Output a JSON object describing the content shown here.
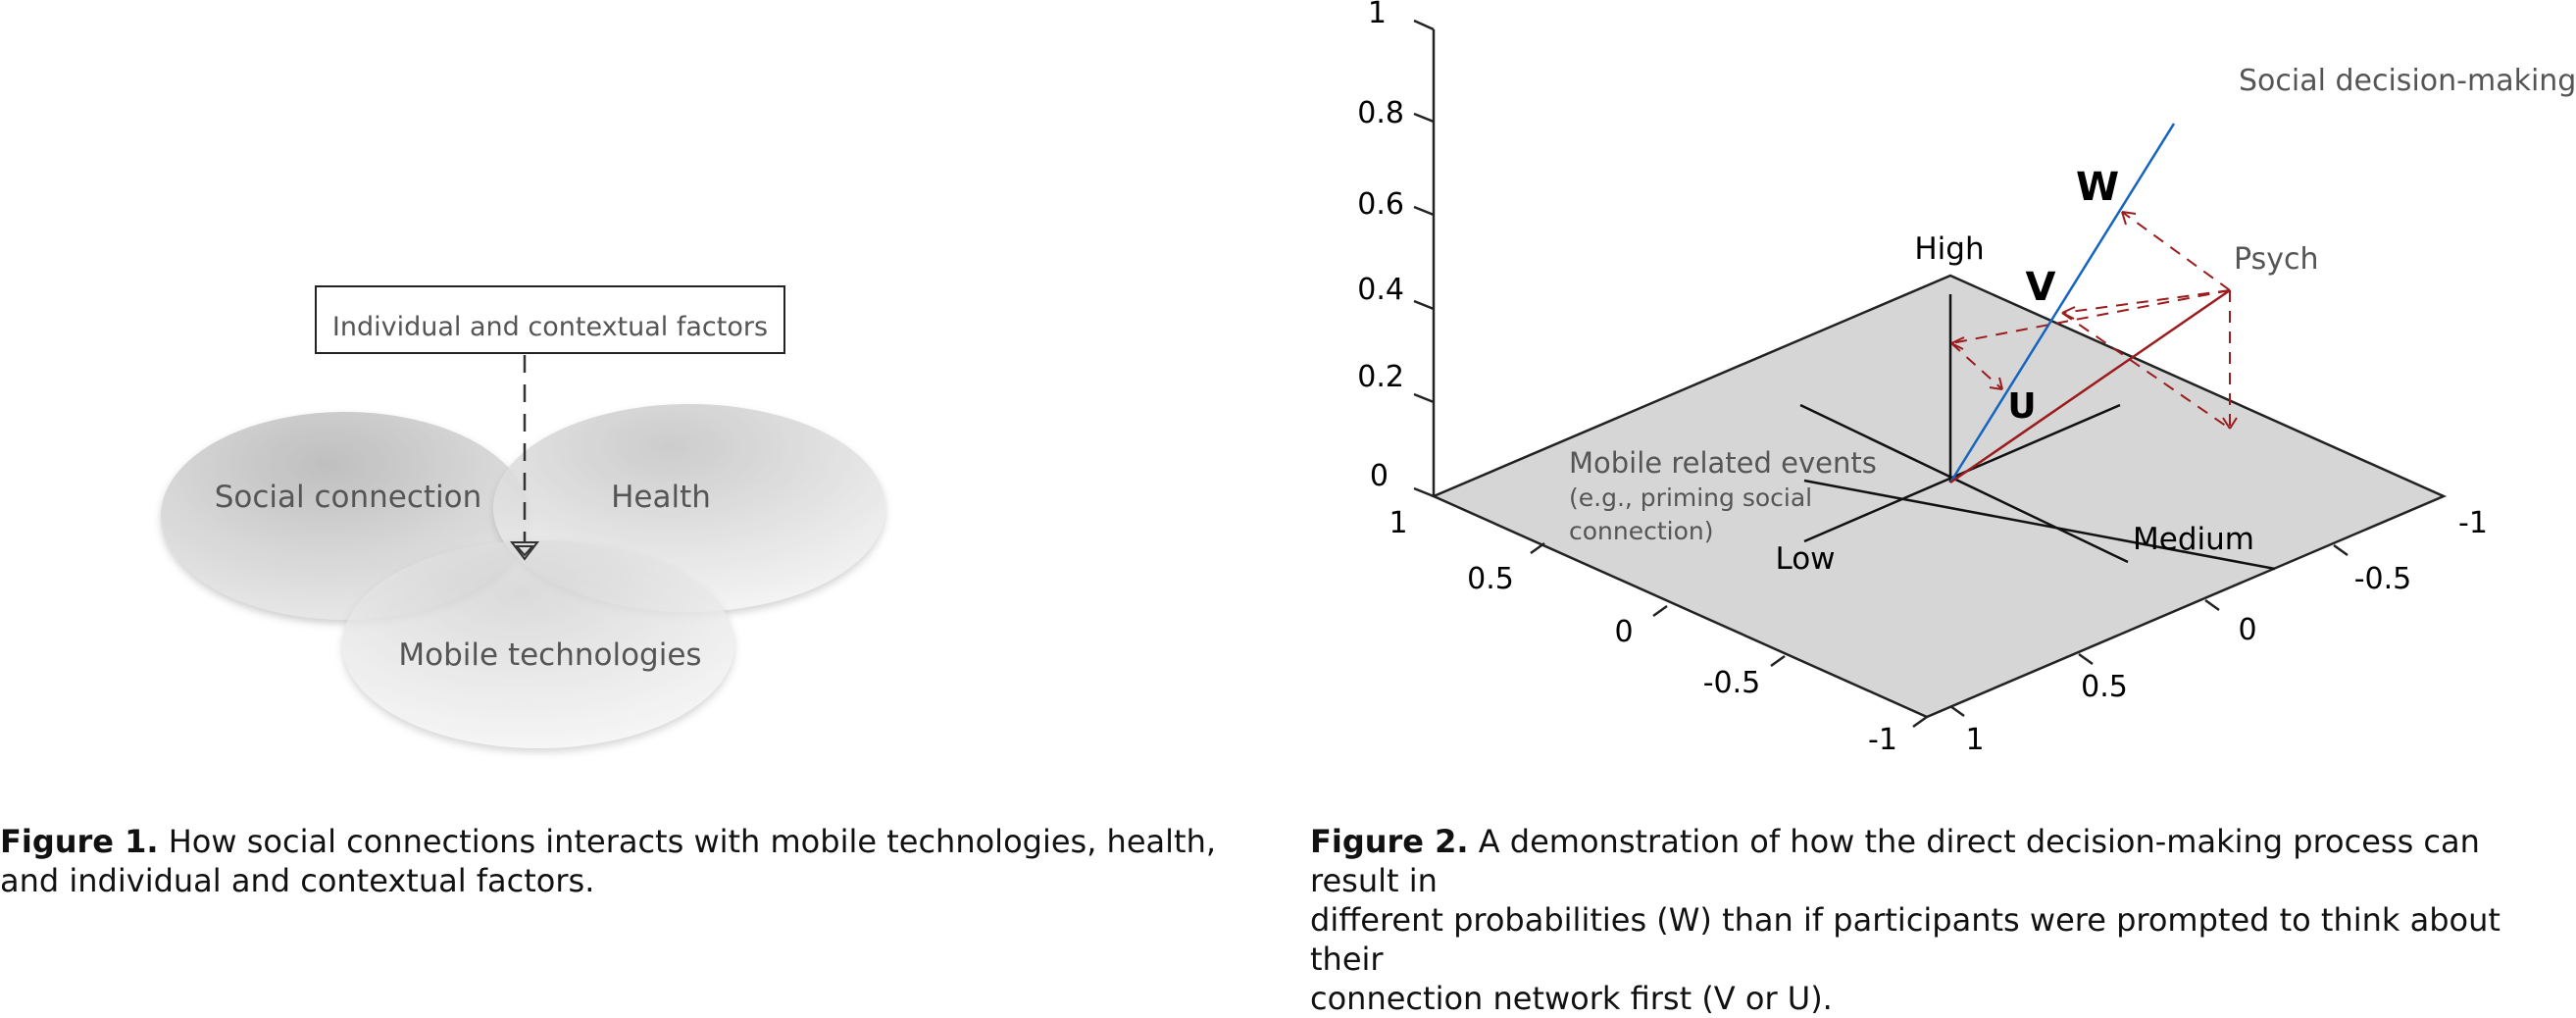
{
  "figure1": {
    "box_label": "Individual and contextual factors",
    "circles": {
      "social": "Social connection",
      "health": "Health",
      "mobile": "Mobile technologies"
    },
    "caption_bold": "Figure 1.",
    "caption_text": "How social connections interacts with mobile technologies, health, and individual and contextual factors."
  },
  "figure2": {
    "z_ticks": [
      "1",
      "0.8",
      "0.6",
      "0.4",
      "0.2",
      "0"
    ],
    "left_ticks": [
      "1",
      "0.5",
      "0",
      "-0.5",
      "-1"
    ],
    "right_ticks": [
      "-1",
      "-0.5",
      "0",
      "0.5",
      "1"
    ],
    "axis_words": {
      "high": "High",
      "low": "Low",
      "medium": "Medium"
    },
    "annotations": {
      "social": "Social decision-making",
      "psych": "Psych",
      "mobile_line1": "Mobile related events",
      "mobile_line2": "(e.g., priming social",
      "mobile_line3": "connection)"
    },
    "points": {
      "w": "W",
      "v": "V",
      "u": "U"
    },
    "colors": {
      "blue_line": "#1565c0",
      "red_line": "#9b1c1c",
      "plane": "#d6d6d6"
    },
    "caption_bold": "Figure 2.",
    "caption_line1": "A demonstration of how the direct decision-making process can result in",
    "caption_line2": "different probabilities (W) than if participants were prompted to think about their",
    "caption_line3": "connection network first (V or U)."
  }
}
